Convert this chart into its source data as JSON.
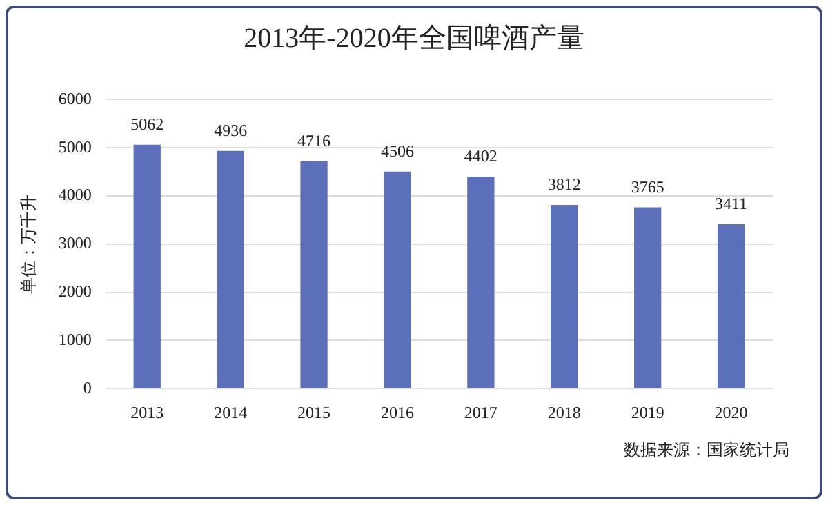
{
  "chart_data": {
    "type": "bar",
    "title": "2013年-2020年全国啤酒产量",
    "ylabel": "单位：万千升",
    "categories": [
      "2013",
      "2014",
      "2015",
      "2016",
      "2017",
      "2018",
      "2019",
      "2020"
    ],
    "values": [
      5062,
      4936,
      4716,
      4506,
      4402,
      3812,
      3765,
      3411
    ],
    "color": "#5b6fbb",
    "ylim": [
      0,
      6000
    ],
    "yticks": [
      0,
      1000,
      2000,
      3000,
      4000,
      5000,
      6000
    ],
    "grid": "y",
    "data_labels": true,
    "legend": false,
    "annotations": [
      "数据来源：国家统计局"
    ]
  }
}
